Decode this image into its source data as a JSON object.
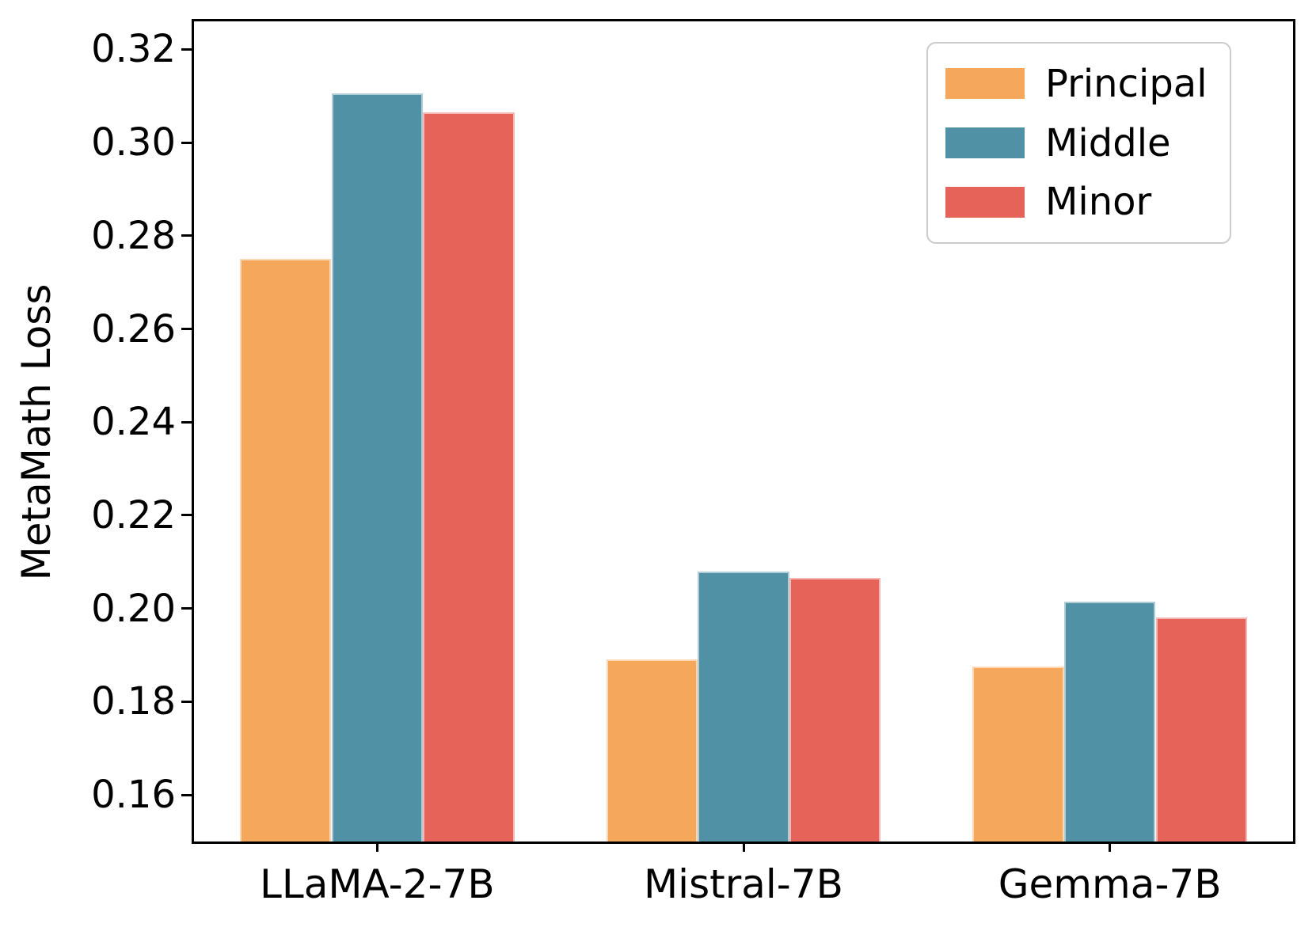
{
  "page": {
    "background": "#ffffff"
  },
  "chart_data": {
    "type": "bar",
    "title": "",
    "xlabel": "",
    "ylabel": "MetaMath Loss",
    "categories": [
      "LLaMA-2-7B",
      "Mistral-7B",
      "Gemma-7B"
    ],
    "series": [
      {
        "name": "Principal",
        "color": "#F5A75B",
        "values": [
          0.275,
          0.189,
          0.1875
        ]
      },
      {
        "name": "Middle",
        "color": "#5191A6",
        "values": [
          0.3105,
          0.208,
          0.2015
        ]
      },
      {
        "name": "Minor",
        "color": "#E6635A",
        "values": [
          0.3065,
          0.2065,
          0.198
        ]
      }
    ],
    "ylim": [
      0.15,
      0.326
    ],
    "yticks": [
      0.16,
      0.18,
      0.2,
      0.22,
      0.24,
      0.26,
      0.28,
      0.3,
      0.32
    ],
    "ytick_labels": [
      "0.16",
      "0.18",
      "0.20",
      "0.22",
      "0.24",
      "0.26",
      "0.28",
      "0.30",
      "0.32"
    ],
    "bar_width_data_units": 0.25,
    "grid": false,
    "legend": {
      "position": "upper right",
      "items": [
        "Principal",
        "Middle",
        "Minor"
      ]
    },
    "axis_color": "#000000",
    "text_color": "#000000"
  }
}
